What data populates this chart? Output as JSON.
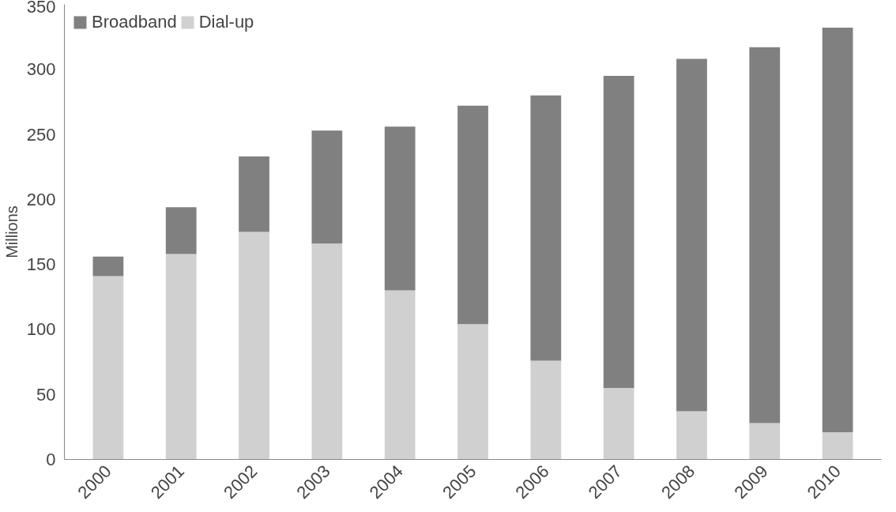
{
  "chart_data": {
    "type": "bar",
    "stacked": true,
    "ylabel": "Millions",
    "categories": [
      "2000",
      "2001",
      "2002",
      "2003",
      "2004",
      "2005",
      "2006",
      "2007",
      "2008",
      "2009",
      "2010"
    ],
    "series": [
      {
        "name": "Dial-up",
        "color": "#d0d0d0",
        "values": [
          141,
          158,
          175,
          166,
          130,
          104,
          76,
          55,
          37,
          28,
          21
        ]
      },
      {
        "name": "Broadband",
        "color": "#808080",
        "values": [
          15,
          36,
          58,
          87,
          126,
          168,
          204,
          240,
          271,
          289,
          311
        ]
      }
    ],
    "ylim": [
      0,
      350
    ],
    "yticks": [
      0,
      50,
      100,
      150,
      200,
      250,
      300,
      350
    ],
    "grid": false,
    "legend": "top left"
  }
}
